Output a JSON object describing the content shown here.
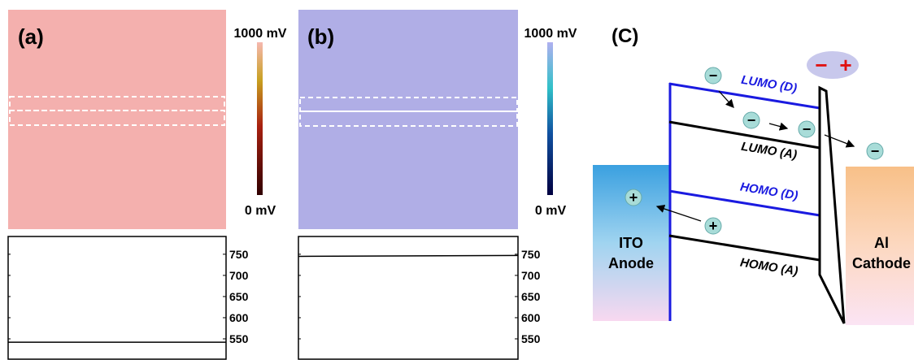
{
  "panels": [
    {
      "label": "(a)",
      "colorbar": {
        "max_label": "1000 mV",
        "min_label": "0 mV"
      }
    },
    {
      "label": "(b)",
      "colorbar": {
        "max_label": "1000 mV",
        "min_label": "0 mV"
      }
    }
  ],
  "chart_data": [
    {
      "type": "line",
      "values": [
        542,
        542
      ],
      "color": "#000000",
      "ylim": [
        500,
        792
      ],
      "yticks": [
        550,
        600,
        650,
        700,
        750
      ]
    },
    {
      "type": "line",
      "values": [
        745,
        747
      ],
      "color": "#000000",
      "ylim": [
        500,
        792
      ],
      "yticks": [
        550,
        600,
        650,
        700,
        750
      ]
    }
  ],
  "diagram": {
    "label": "(C)",
    "anode": [
      "ITO",
      "Anode"
    ],
    "cathode": [
      "Al",
      "Cathode"
    ],
    "levels": [
      "LUMO (D)",
      "LUMO (A)",
      "HOMO (D)",
      "HOMO (A)"
    ],
    "bias": [
      "−",
      "+"
    ],
    "electron": "−",
    "hole": "+"
  }
}
